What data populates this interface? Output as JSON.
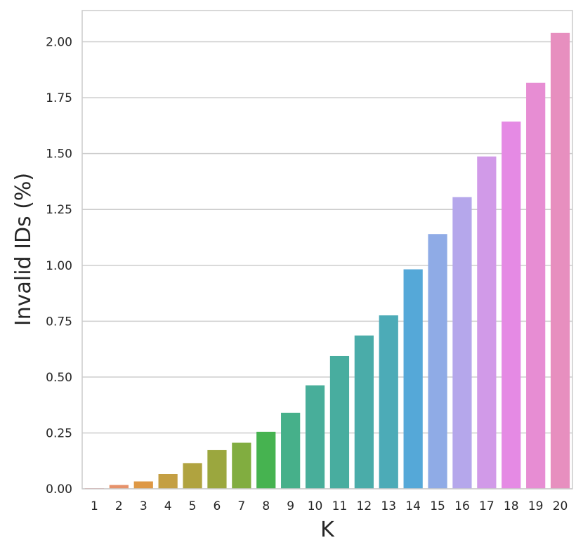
{
  "chart_data": {
    "type": "bar",
    "title": "",
    "xlabel": "K",
    "ylabel": "Invalid IDs (%)",
    "categories": [
      "1",
      "2",
      "3",
      "4",
      "5",
      "6",
      "7",
      "8",
      "9",
      "10",
      "11",
      "12",
      "13",
      "14",
      "15",
      "16",
      "17",
      "18",
      "19",
      "20"
    ],
    "values": [
      0.003,
      0.017,
      0.033,
      0.066,
      0.115,
      0.173,
      0.206,
      0.255,
      0.34,
      0.463,
      0.594,
      0.686,
      0.776,
      0.982,
      1.14,
      1.305,
      1.487,
      1.643,
      1.817,
      2.04
    ],
    "ylim": [
      0,
      2.14
    ],
    "yticks": [
      "0.00",
      "0.25",
      "0.50",
      "0.75",
      "1.00",
      "1.25",
      "1.50",
      "1.75",
      "2.00"
    ],
    "grid": "horizontal",
    "colors": [
      "#e9898b",
      "#e6926b",
      "#de9845",
      "#c49f43",
      "#b0a33f",
      "#9ba73e",
      "#81ad40",
      "#46b350",
      "#46b08a",
      "#48ae9a",
      "#48ad9f",
      "#4aaca9",
      "#4cabb7",
      "#55a8d8",
      "#8fabe6",
      "#b5a7eb",
      "#d19ae8",
      "#e58ae4",
      "#e78dd3",
      "#e78fbf"
    ]
  }
}
